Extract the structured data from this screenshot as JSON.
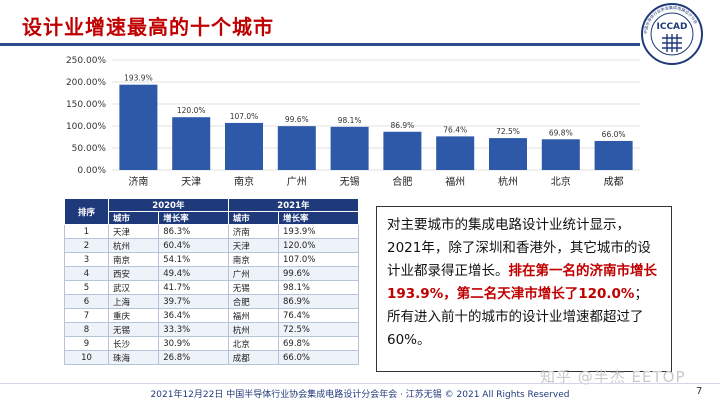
{
  "header": {
    "title": "设计业增速最高的十个城市"
  },
  "logo": {
    "text": "ICCAD",
    "ring_text": "中国半导体行业协会集成电路设计分会"
  },
  "chart_data": {
    "type": "bar",
    "categories": [
      "济南",
      "天津",
      "南京",
      "广州",
      "无锡",
      "合肥",
      "福州",
      "杭州",
      "北京",
      "成都"
    ],
    "values": [
      193.9,
      120.0,
      107.0,
      99.6,
      98.1,
      86.9,
      76.4,
      72.5,
      69.8,
      66.0
    ],
    "data_labels": [
      "193.9%",
      "120.0%",
      "107.0%",
      "99.6%",
      "98.1%",
      "86.9%",
      "76.4%",
      "72.5%",
      "69.8%",
      "66.0%"
    ],
    "ylim": [
      0,
      250
    ],
    "yticks": [
      0,
      50,
      100,
      150,
      200,
      250
    ],
    "ytick_labels": [
      "0.00%",
      "50.00%",
      "100.00%",
      "150.00%",
      "200.00%",
      "250.00%"
    ],
    "grid": true,
    "bar_color": "#2e58a8",
    "title": "",
    "xlabel": "",
    "ylabel": ""
  },
  "table": {
    "rank_header": "排序",
    "year_headers": [
      "2020年",
      "2021年"
    ],
    "sub_headers": [
      "城市",
      "增长率",
      "城市",
      "增长率"
    ],
    "rows": [
      {
        "rank": "1",
        "city2020": "天津",
        "rate2020": "86.3%",
        "city2021": "济南",
        "rate2021": "193.9%"
      },
      {
        "rank": "2",
        "city2020": "杭州",
        "rate2020": "60.4%",
        "city2021": "天津",
        "rate2021": "120.0%"
      },
      {
        "rank": "3",
        "city2020": "南京",
        "rate2020": "54.1%",
        "city2021": "南京",
        "rate2021": "107.0%"
      },
      {
        "rank": "4",
        "city2020": "西安",
        "rate2020": "49.4%",
        "city2021": "广州",
        "rate2021": "99.6%"
      },
      {
        "rank": "5",
        "city2020": "武汉",
        "rate2020": "41.7%",
        "city2021": "无锡",
        "rate2021": "98.1%"
      },
      {
        "rank": "6",
        "city2020": "上海",
        "rate2020": "39.7%",
        "city2021": "合肥",
        "rate2021": "86.9%"
      },
      {
        "rank": "7",
        "city2020": "重庆",
        "rate2020": "36.4%",
        "city2021": "福州",
        "rate2021": "76.4%"
      },
      {
        "rank": "8",
        "city2020": "无锡",
        "rate2020": "33.3%",
        "city2021": "杭州",
        "rate2021": "72.5%"
      },
      {
        "rank": "9",
        "city2020": "长沙",
        "rate2020": "30.9%",
        "city2021": "北京",
        "rate2021": "69.8%"
      },
      {
        "rank": "10",
        "city2020": "珠海",
        "rate2020": "26.8%",
        "city2021": "成都",
        "rate2021": "66.0%"
      }
    ]
  },
  "summary": {
    "line1": "对主要城市的集成电路设计业统计显示，2021年，除了深圳和香港外，其它城市的设计业都录得正增长。",
    "highlight": "排在第一名的济南市增长193.9%，第二名天津市增长了120.0%",
    "line2": "；所有进入前十的城市的设计业增速都超过了60%。"
  },
  "watermark": "知乎 @半杰 EETOP",
  "footer": {
    "text": "2021年12月22日 中国半导体行业协会集成电路设计分会年会 · 江苏无锡 © 2021 All Rights Reserved",
    "page": "7"
  },
  "colors": {
    "accent_red": "#c00000",
    "header_blue": "#1f3a7a",
    "bar_blue": "#2e58a8"
  }
}
